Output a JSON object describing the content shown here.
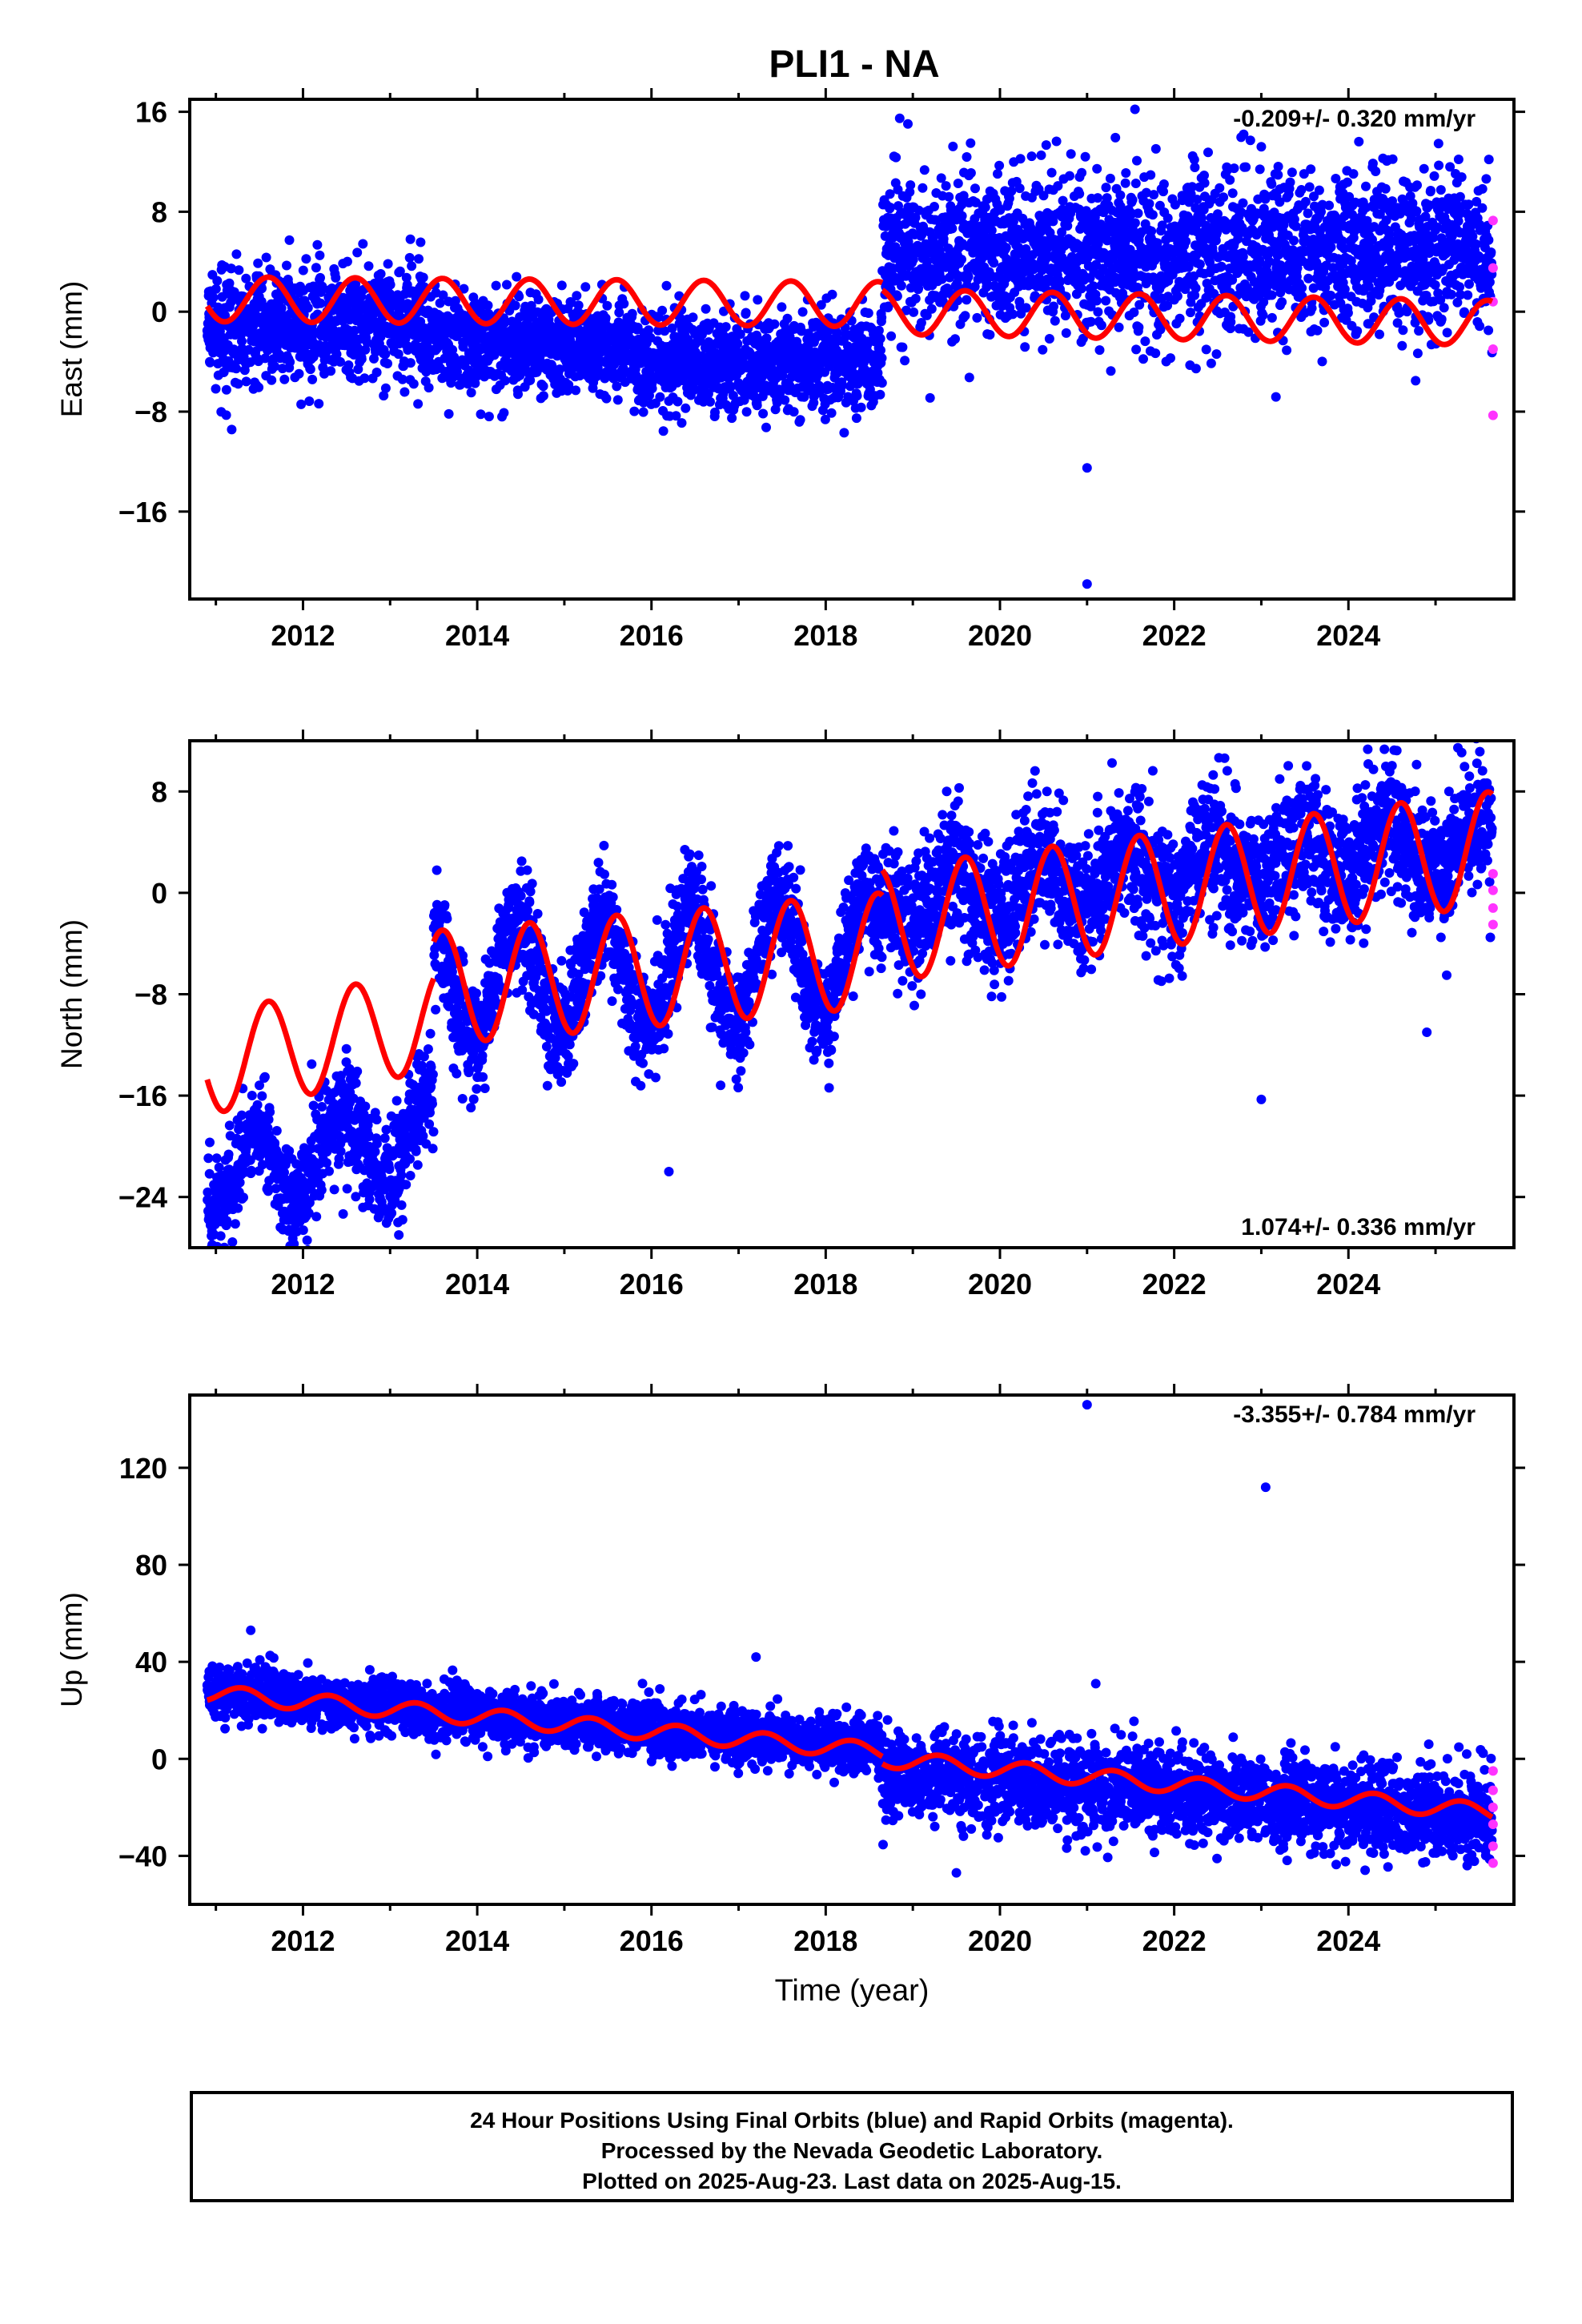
{
  "chart_data": [
    {
      "type": "scatter",
      "title": "PLI1 - NA",
      "panel": "east",
      "ylabel": "East (mm)",
      "xlabel": "",
      "xlim": [
        2010.7,
        2025.9
      ],
      "ylim": [
        -23,
        17
      ],
      "yticks": [
        -16,
        -8,
        0,
        8,
        16
      ],
      "xticks": [
        2012,
        2014,
        2016,
        2018,
        2020,
        2022,
        2024
      ],
      "rate_label": "-0.209+/- 0.320 mm/yr",
      "rate_position": "top-right",
      "colors": {
        "final": "#0000ff",
        "rapid": "#ff33ff",
        "model": "#ff0000"
      },
      "trend_segments": [
        {
          "start": 2010.9,
          "end": 2018.65,
          "y0": 1.0,
          "y1": 0.6,
          "amplitude": 1.8,
          "phase": 0.0
        },
        {
          "start": 2018.65,
          "end": 2025.65,
          "y0": 0.0,
          "y1": -0.9,
          "amplitude": 1.8,
          "phase": 0.0
        }
      ],
      "data_segments": [
        {
          "start": 2010.9,
          "end": 2013.4,
          "y0": -1.5,
          "y1": -0.5,
          "spread": 2.3
        },
        {
          "start": 2013.4,
          "end": 2015.8,
          "y0": -2.2,
          "y1": -2.8,
          "spread": 1.9
        },
        {
          "start": 2015.8,
          "end": 2018.65,
          "y0": -4.2,
          "y1": -3.8,
          "spread": 1.9
        },
        {
          "start": 2018.65,
          "end": 2025.65,
          "y0": 4.5,
          "y1": 5.0,
          "spread": 3.2
        }
      ],
      "outliers": [
        [
          2021.0,
          -12.5
        ],
        [
          2021.0,
          -21.8
        ],
        [
          2021.55,
          16.2
        ],
        [
          2023.0,
          13.2
        ]
      ],
      "rapid_points": [
        [
          2025.66,
          7.3
        ],
        [
          2025.66,
          3.5
        ],
        [
          2025.66,
          0.8
        ],
        [
          2025.66,
          -3.0
        ],
        [
          2025.66,
          -8.3
        ]
      ]
    },
    {
      "type": "scatter",
      "panel": "north",
      "ylabel": "North (mm)",
      "xlabel": "",
      "xlim": [
        2010.7,
        2025.9
      ],
      "ylim": [
        -28,
        12
      ],
      "yticks": [
        -24,
        -16,
        -8,
        0,
        8
      ],
      "xticks": [
        2012,
        2014,
        2016,
        2018,
        2020,
        2022,
        2024
      ],
      "rate_label": "1.074+/- 0.336 mm/yr",
      "rate_position": "bottom-right",
      "colors": {
        "final": "#0000ff",
        "rapid": "#ff33ff",
        "model": "#ff0000"
      },
      "trend_segments": [
        {
          "start": 2010.9,
          "end": 2013.5,
          "y0": -13.5,
          "y1": -10.0,
          "amplitude": 4.0,
          "phase": 0.0
        },
        {
          "start": 2013.5,
          "end": 2018.65,
          "y0": -7.5,
          "y1": -4.5,
          "amplitude": 4.5,
          "phase": 0.0
        },
        {
          "start": 2018.65,
          "end": 2025.65,
          "y0": -2.5,
          "y1": 3.5,
          "amplitude": 4.5,
          "phase": 0.0
        }
      ],
      "data_segments": [
        {
          "start": 2010.9,
          "end": 2013.5,
          "y0": -22.5,
          "y1": -19.0,
          "spread": 2.0,
          "amplitude": 3.0
        },
        {
          "start": 2013.5,
          "end": 2018.65,
          "y0": -7.5,
          "y1": -4.5,
          "spread": 2.2,
          "amplitude": 4.5
        },
        {
          "start": 2018.65,
          "end": 2025.65,
          "y0": -0.5,
          "y1": 4.0,
          "spread": 2.6,
          "amplitude": 2.0
        }
      ],
      "outliers": [
        [
          2023.0,
          -16.3
        ],
        [
          2024.9,
          -11.0
        ],
        [
          2016.2,
          -22.0
        ],
        [
          2013.1,
          -27.0
        ]
      ],
      "rapid_points": [
        [
          2025.66,
          1.5
        ],
        [
          2025.66,
          0.2
        ],
        [
          2025.66,
          -1.2
        ],
        [
          2025.66,
          -2.5
        ]
      ]
    },
    {
      "type": "scatter",
      "panel": "up",
      "ylabel": "Up (mm)",
      "xlabel": "Time (year)",
      "xlim": [
        2010.7,
        2025.9
      ],
      "ylim": [
        -60,
        150
      ],
      "yticks": [
        -40,
        0,
        40,
        80,
        120
      ],
      "xticks": [
        2012,
        2014,
        2016,
        2018,
        2020,
        2022,
        2024
      ],
      "rate_label": "-3.355+/- 0.784 mm/yr",
      "rate_position": "top-right",
      "colors": {
        "final": "#0000ff",
        "rapid": "#ff33ff",
        "model": "#ff0000"
      },
      "trend_segments": [
        {
          "start": 2010.9,
          "end": 2018.65,
          "y0": 27.0,
          "y1": 3.0,
          "amplitude": 3.5,
          "phase": 0.3
        },
        {
          "start": 2018.65,
          "end": 2025.65,
          "y0": 0.0,
          "y1": -22.0,
          "amplitude": 3.5,
          "phase": 0.3
        }
      ],
      "data_segments": [
        {
          "start": 2010.9,
          "end": 2018.65,
          "y0": 28.0,
          "y1": 4.0,
          "spread": 5.5
        },
        {
          "start": 2018.65,
          "end": 2025.65,
          "y0": -6.0,
          "y1": -24.0,
          "spread": 9.0
        }
      ],
      "outliers": [
        [
          2021.0,
          146.0
        ],
        [
          2023.05,
          112.0
        ],
        [
          2011.4,
          53.0
        ],
        [
          2017.2,
          42.0
        ],
        [
          2021.1,
          31.0
        ],
        [
          2019.5,
          -47.0
        ]
      ],
      "rapid_points": [
        [
          2025.66,
          -5.0
        ],
        [
          2025.66,
          -13.0
        ],
        [
          2025.66,
          -20.0
        ],
        [
          2025.66,
          -27.0
        ],
        [
          2025.66,
          -36.0
        ],
        [
          2025.66,
          -43.0
        ]
      ]
    }
  ],
  "footer": {
    "line1": "24 Hour Positions Using Final Orbits (blue) and Rapid Orbits (magenta).",
    "line2": "Processed by the Nevada Geodetic Laboratory.",
    "line3": "Plotted on 2025-Aug-23. Last data on 2025-Aug-15."
  }
}
